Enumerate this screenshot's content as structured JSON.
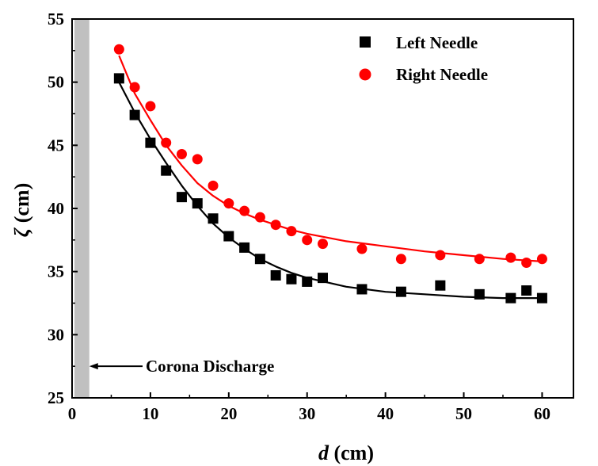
{
  "chart_data": {
    "type": "scatter",
    "xlabel_italic": "d",
    "xlabel_unit": " (cm)",
    "ylabel_italic": "ζ",
    "ylabel_unit": " (cm)",
    "xlim": [
      0,
      64
    ],
    "ylim": [
      25,
      55
    ],
    "xticks": [
      0,
      10,
      20,
      30,
      40,
      50,
      60
    ],
    "yticks": [
      25,
      30,
      35,
      40,
      45,
      50,
      55
    ],
    "grid": false,
    "legend_position": "top-right",
    "shaded_region": {
      "x_range": [
        0.3,
        2.2
      ],
      "color": "#c0c0c0"
    },
    "annotation": {
      "text": "Corona Discharge",
      "arrow_to_x": 2.2,
      "y": 27.5
    },
    "series": [
      {
        "name": "Left Needle",
        "marker": "square",
        "color": "#000000",
        "x": [
          6,
          8,
          10,
          12,
          14,
          16,
          18,
          20,
          22,
          24,
          26,
          28,
          30,
          32,
          37,
          42,
          47,
          52,
          56,
          58,
          60
        ],
        "y": [
          50.3,
          47.4,
          45.2,
          43.0,
          40.9,
          40.4,
          39.2,
          37.8,
          36.9,
          36.0,
          34.7,
          34.4,
          34.2,
          34.5,
          33.6,
          33.4,
          33.9,
          33.2,
          32.9,
          33.5,
          32.9
        ],
        "fit_x": [
          6,
          8,
          10,
          12,
          14,
          16,
          18,
          20,
          22,
          24,
          26,
          28,
          30,
          35,
          40,
          45,
          50,
          55,
          60
        ],
        "fit_y": [
          50.0,
          47.6,
          45.5,
          43.6,
          41.8,
          40.2,
          38.8,
          37.7,
          36.8,
          36.0,
          35.4,
          34.9,
          34.5,
          33.8,
          33.4,
          33.2,
          33.0,
          32.9,
          32.9
        ]
      },
      {
        "name": "Right Needle",
        "marker": "circle",
        "color": "#ff0000",
        "x": [
          6,
          8,
          10,
          12,
          14,
          16,
          18,
          20,
          22,
          24,
          26,
          28,
          30,
          32,
          37,
          42,
          47,
          52,
          56,
          58,
          60
        ],
        "y": [
          52.6,
          49.6,
          48.1,
          45.2,
          44.3,
          43.9,
          41.8,
          40.4,
          39.8,
          39.3,
          38.7,
          38.2,
          37.5,
          37.2,
          36.8,
          36.0,
          36.3,
          36.0,
          36.1,
          35.7,
          36.0
        ],
        "fit_x": [
          6,
          8,
          10,
          12,
          14,
          16,
          18,
          20,
          22,
          24,
          26,
          28,
          30,
          35,
          40,
          45,
          50,
          55,
          60
        ],
        "fit_y": [
          52.1,
          49.1,
          47.0,
          45.0,
          43.4,
          42.0,
          41.0,
          40.2,
          39.6,
          39.1,
          38.7,
          38.3,
          38.0,
          37.4,
          37.0,
          36.6,
          36.3,
          36.0,
          35.8
        ]
      }
    ]
  }
}
